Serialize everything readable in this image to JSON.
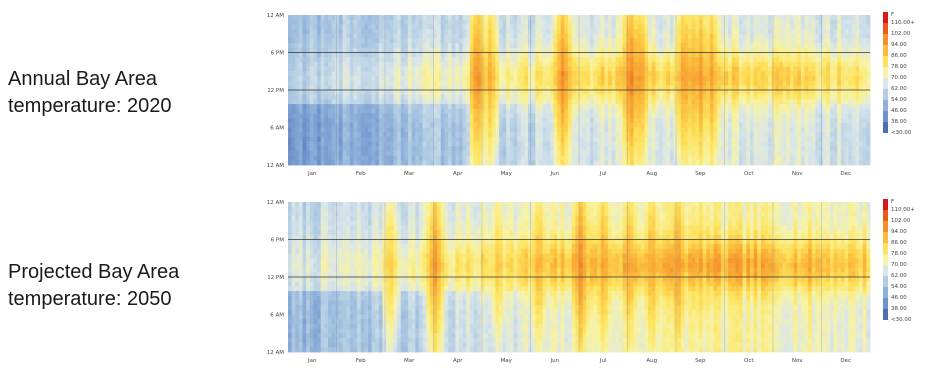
{
  "chart_data": [
    {
      "type": "heatmap",
      "title_lines": [
        "Annual Bay Area",
        "temperature:  2020"
      ],
      "y_tick_labels": [
        "12 AM",
        "6 PM",
        "12 PM",
        "6 AM",
        "12 AM"
      ],
      "x_tick_labels": [
        "Jan",
        "Feb",
        "Mar",
        "Apr",
        "May",
        "Jun",
        "Jul",
        "Aug",
        "Sep",
        "Oct",
        "Nov",
        "Dec"
      ],
      "legend_unit": "F",
      "legend_labels": [
        "110.00+",
        "102.00",
        "94.00",
        "86.00",
        "78.00",
        "70.00",
        "62.00",
        "54.00",
        "46.00",
        "38.00",
        "<30.00"
      ],
      "legend_colors": [
        "#d7191c",
        "#e8591a",
        "#f4902a",
        "#fbbb3c",
        "#fde35d",
        "#f7f3a6",
        "#d9e6ea",
        "#b3cde3",
        "#8fb1da",
        "#6d92cc",
        "#4a6fb5"
      ],
      "hot_spots": [
        {
          "month": "Apr",
          "day": 27,
          "peak_f": 96
        },
        {
          "month": "May",
          "day": 5,
          "peak_f": 90
        },
        {
          "month": "Jun",
          "day": 20,
          "peak_f": 96
        },
        {
          "month": "Aug",
          "day": 2,
          "peak_f": 98
        },
        {
          "month": "Aug",
          "day": 8,
          "peak_f": 94
        },
        {
          "month": "Sep",
          "day": 5,
          "peak_f": 94
        },
        {
          "month": "Sep",
          "day": 10,
          "peak_f": 92
        },
        {
          "month": "Sep",
          "day": 15,
          "peak_f": 94
        },
        {
          "month": "Sep",
          "day": 22,
          "peak_f": 92
        }
      ],
      "cold_periods": [
        {
          "month": "Jan",
          "hour_range": "12 PM - 12 AM",
          "low_f": 46
        },
        {
          "month": "Feb",
          "hour_range": "12 PM - 12 AM",
          "low_f": 46
        },
        {
          "month": "Dec",
          "hour_range": "12 PM - 12 AM",
          "low_f": 38
        }
      ]
    },
    {
      "type": "heatmap",
      "title_lines": [
        "Projected Bay Area",
        "temperature:  2050"
      ],
      "y_tick_labels": [
        "12 AM",
        "6 PM",
        "12 PM",
        "6 AM",
        "12 AM"
      ],
      "x_tick_labels": [
        "Jan",
        "Feb",
        "Mar",
        "Apr",
        "May",
        "Jun",
        "Jul",
        "Aug",
        "Sep",
        "Oct",
        "Nov",
        "Dec"
      ],
      "legend_unit": "F",
      "legend_labels": [
        "110.00+",
        "102.00",
        "94.00",
        "86.00",
        "78.00",
        "70.00",
        "62.00",
        "54.00",
        "46.00",
        "38.00",
        "<30.00"
      ],
      "legend_colors": [
        "#d7191c",
        "#e8591a",
        "#f4902a",
        "#fbbb3c",
        "#fde35d",
        "#f7f3a6",
        "#d9e6ea",
        "#b3cde3",
        "#8fb1da",
        "#6d92cc",
        "#4a6fb5"
      ],
      "hot_spots": [
        {
          "month": "Mar",
          "day": 3,
          "peak_f": 86
        },
        {
          "month": "Apr",
          "day": 1,
          "peak_f": 94
        },
        {
          "month": "May",
          "day": 10,
          "peak_f": 86
        },
        {
          "month": "Jun",
          "day": 5,
          "peak_f": 90
        },
        {
          "month": "Jul",
          "day": 1,
          "peak_f": 96
        },
        {
          "month": "Jul",
          "day": 15,
          "peak_f": 92
        },
        {
          "month": "Aug",
          "day": 1,
          "peak_f": 92
        },
        {
          "month": "Aug",
          "day": 15,
          "peak_f": 92
        },
        {
          "month": "Sep",
          "day": 1,
          "peak_f": 94
        },
        {
          "month": "Sep",
          "day": 15,
          "peak_f": 88
        }
      ],
      "cold_periods": [
        {
          "month": "Jan",
          "hour_range": "12 PM - 12 AM",
          "low_f": 54
        },
        {
          "month": "Dec",
          "hour_range": "12 PM - 12 AM",
          "low_f": 54
        }
      ]
    }
  ]
}
